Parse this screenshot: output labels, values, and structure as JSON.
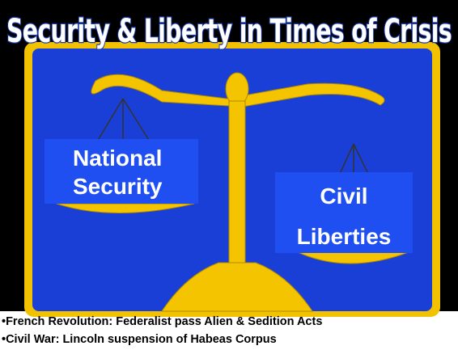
{
  "header": {
    "title": "Security & Liberty in Times of Crisis"
  },
  "scale": {
    "left_label": [
      "National",
      "Security"
    ],
    "right_label": [
      "Civil",
      "Liberties"
    ]
  },
  "notes": [
    "•French Revolution: Federalist pass Alien & Sedition Acts",
    "•Civil War: Lincoln suspension of Habeas Corpus"
  ]
}
